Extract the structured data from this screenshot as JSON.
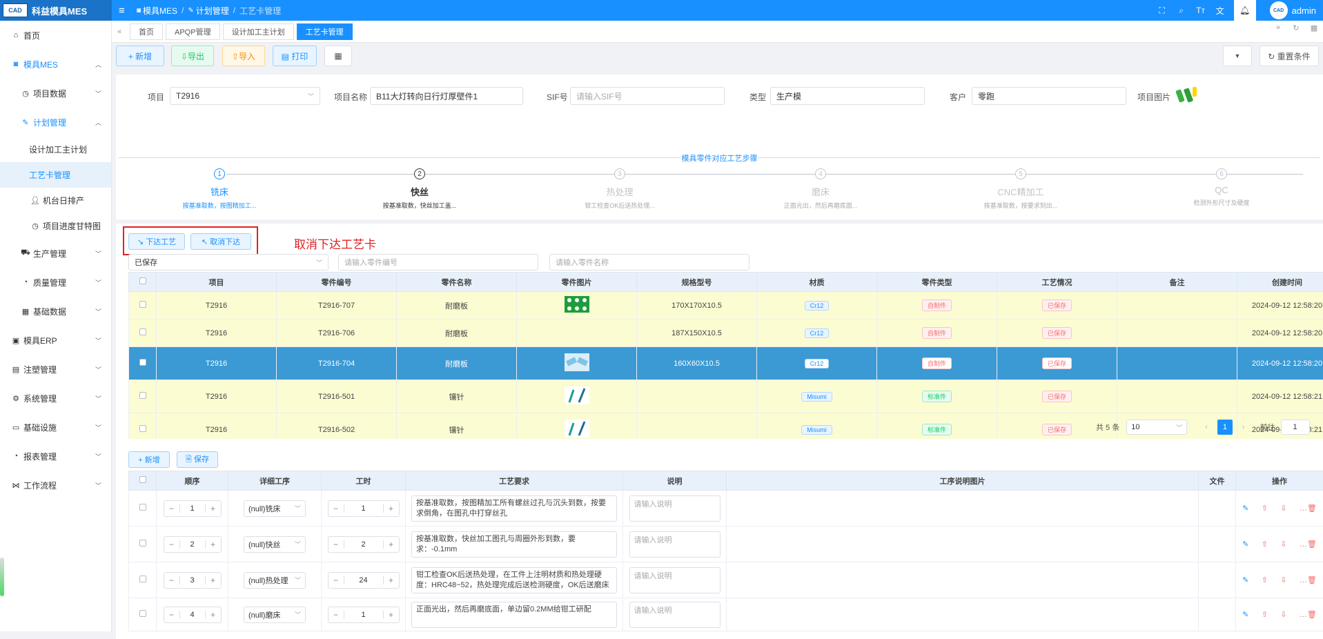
{
  "header": {
    "logo_text": "CAD",
    "app_name": "科益模具MES",
    "breadcrumb": [
      "模具MES",
      "计划管理",
      "工艺卡管理"
    ],
    "user": "admin",
    "avatar_text": "CAD"
  },
  "sidebar": {
    "items": [
      {
        "label": "首页",
        "icon": "home-icon"
      },
      {
        "label": "模具MES",
        "icon": "camera-icon"
      },
      {
        "label": "项目数据",
        "icon": "clock-icon"
      },
      {
        "label": "计划管理",
        "icon": "edit-icon"
      },
      {
        "label": "设计加工主计划"
      },
      {
        "label": "工艺卡管理"
      },
      {
        "label": "机台日排产",
        "icon": "user-icon"
      },
      {
        "label": "项目进度甘特图",
        "icon": "clock-icon"
      },
      {
        "label": "生产管理",
        "icon": "truck-icon"
      },
      {
        "label": "质量管理",
        "icon": "gauge-icon"
      },
      {
        "label": "基础数据",
        "icon": "calendar-icon"
      },
      {
        "label": "模具ERP",
        "icon": "box-icon"
      },
      {
        "label": "注塑管理",
        "icon": "box-icon"
      },
      {
        "label": "系统管理",
        "icon": "gear-icon"
      },
      {
        "label": "基础设施",
        "icon": "monitor-icon"
      },
      {
        "label": "报表管理",
        "icon": "pie-icon"
      },
      {
        "label": "工作流程",
        "icon": "flow-icon"
      }
    ]
  },
  "tabs": [
    "首页",
    "APQP管理",
    "设计加工主计划",
    "工艺卡管理"
  ],
  "toolbar": {
    "add": "+ 新增",
    "export": "⇩导出",
    "import": "⇧导入",
    "print": "▤ 打印",
    "reset": "↻ 重置条件"
  },
  "form": {
    "project_label": "项目",
    "project_value": "T2916",
    "name_label": "项目名称",
    "name_value": "B11大灯转向日行灯厚壁件1",
    "sif_label": "SIF号",
    "sif_placeholder": "请输入SIF号",
    "type_label": "类型",
    "type_value": "生产模",
    "customer_label": "客户",
    "customer_value": "零跑",
    "image_label": "项目图片"
  },
  "steps": {
    "title": "模具零件对应工艺步骤",
    "items": [
      {
        "num": "1",
        "title": "铣床",
        "desc": "按基准取数，按图精加工..."
      },
      {
        "num": "2",
        "title": "快丝",
        "desc": "按基准取数，快丝加工盖..."
      },
      {
        "num": "3",
        "title": "热处理",
        "desc": "钳工检查OK后送热处理..."
      },
      {
        "num": "4",
        "title": "磨床",
        "desc": "正面光出，然后再磨底面..."
      },
      {
        "num": "5",
        "title": "CNC精加工",
        "desc": "按基准取数，按要求刻出..."
      },
      {
        "num": "6",
        "title": "QC",
        "desc": "检测外形尺寸及硬度"
      }
    ]
  },
  "actions": {
    "issue": "↘ 下达工艺",
    "cancel_issue": "↖ 取消下达",
    "annotation": "取消下达工艺卡"
  },
  "filters": {
    "status": "已保存",
    "part_no_placeholder": "请输入零件编号",
    "part_name_placeholder": "请输入零件名称"
  },
  "parts_table": {
    "headers": [
      "项目",
      "零件编号",
      "零件名称",
      "零件图片",
      "规格型号",
      "材质",
      "零件类型",
      "工艺情况",
      "备注",
      "创建时间"
    ],
    "rows": [
      {
        "project": "T2916",
        "part_no": "T2916-707",
        "name": "耐磨板",
        "spec": "170X170X10.5",
        "material": "Cr12",
        "type": "自制件",
        "status": "已保存",
        "created": "2024-09-12 12:58:20"
      },
      {
        "project": "T2916",
        "part_no": "T2916-706",
        "name": "耐磨板",
        "spec": "187X150X10.5",
        "material": "Cr12",
        "type": "自制件",
        "status": "已保存",
        "created": "2024-09-12 12:58:20"
      },
      {
        "project": "T2916",
        "part_no": "T2916-704",
        "name": "耐磨板",
        "spec": "160X60X10.5",
        "material": "Cr12",
        "type": "自制件",
        "status": "已保存",
        "created": "2024-09-12 12:58:20"
      },
      {
        "project": "T2916",
        "part_no": "T2916-501",
        "name": "镶针",
        "spec": "",
        "material": "Misumi",
        "type": "标准件",
        "status": "已保存",
        "created": "2024-09-12 12:58:21"
      },
      {
        "project": "T2916",
        "part_no": "T2916-502",
        "name": "镶针",
        "spec": "",
        "material": "Misumi",
        "type": "标准件",
        "status": "已保存",
        "created": "2024-09-12 12:58:21"
      }
    ]
  },
  "pagination": {
    "total": "共 5 条",
    "page_size": "10",
    "page": "1",
    "goto_label": "前往",
    "goto_value": "1"
  },
  "process": {
    "add": "+ 新增",
    "save": "🗎 保存",
    "headers": [
      "顺序",
      "详细工序",
      "工时",
      "工艺要求",
      "说明",
      "工序说明图片",
      "文件",
      "操作"
    ],
    "note_placeholder": "请输入说明",
    "rows": [
      {
        "order": "1",
        "step": "(null)铣床",
        "hours": "1",
        "req": "按基准取数，按图精加工所有螺丝过孔与沉头到数，按要求倒角，在图孔中打穿丝孔"
      },
      {
        "order": "2",
        "step": "(null)快丝",
        "hours": "2",
        "req": "按基准取数，快丝加工图孔与周圈外形到数，要求：-0.1mm"
      },
      {
        "order": "3",
        "step": "(null)热处理",
        "hours": "24",
        "req": "钳工检查OK后送热处理，在工件上注明材质和热处理硬度：HRC48~52，热处理完成后送检测硬度，OK后送磨床"
      },
      {
        "order": "4",
        "step": "(null)磨床",
        "hours": "1",
        "req": "正面光出，然后再磨底面，单边留0.2MM给钳工研配"
      }
    ]
  }
}
